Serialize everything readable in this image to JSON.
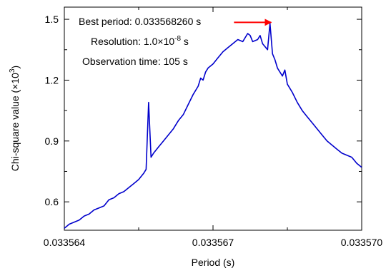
{
  "chart_data": {
    "type": "line",
    "xlabel": "Period (s)",
    "ylabel_text": "Chi-square value (×10",
    "ylabel_exp": "3",
    "ylabel_close": ")",
    "xlim": [
      0.033564,
      0.03357
    ],
    "ylim": [
      0.46,
      1.56
    ],
    "x_ticks": [
      0.033564,
      0.033567,
      0.03357
    ],
    "x_tick_labels": [
      "0.033564",
      "0.033567",
      "0.033570"
    ],
    "y_ticks": [
      0.6,
      0.9,
      1.2,
      1.5
    ],
    "y_tick_labels": [
      "0.6",
      "0.9",
      "1.2",
      "1.5"
    ],
    "line_color": "#0000cc",
    "annotation_color": "#ff0000",
    "annotations": {
      "best_period": "Best period: 0.033568260 s",
      "resolution_prefix": "Resolution: 1.0×10",
      "resolution_exp": "-8",
      "resolution_suffix": " s",
      "observation": "Observation time: 105 s"
    },
    "arrow_target": {
      "x": 0.03356826,
      "y": 1.485
    },
    "series": [
      {
        "x": [
          0.033564,
          0.0335641,
          0.0335642,
          0.0335643,
          0.0335644,
          0.0335645,
          0.0335646,
          0.0335647,
          0.0335648,
          0.0335649,
          0.033565,
          0.0335651,
          0.0335652,
          0.0335653,
          0.0335654,
          0.0335655,
          0.0335656,
          0.03356565,
          0.0335657,
          0.03356575,
          0.0335658,
          0.0335659,
          0.033566,
          0.0335661,
          0.0335662,
          0.0335663,
          0.0335664,
          0.0335665,
          0.0335666,
          0.0335667,
          0.03356675,
          0.0335668,
          0.03356685,
          0.0335669,
          0.033567,
          0.0335671,
          0.0335672,
          0.0335673,
          0.0335674,
          0.0335675,
          0.0335676,
          0.0335677,
          0.03356775,
          0.0335678,
          0.0335679,
          0.03356795,
          0.033568,
          0.0335681,
          0.03356815,
          0.0335682,
          0.03356825,
          0.0335683,
          0.0335684,
          0.03356845,
          0.0335685,
          0.0335686,
          0.0335687,
          0.0335688,
          0.0335689,
          0.033569,
          0.0335691,
          0.0335692,
          0.0335693,
          0.0335694,
          0.0335695,
          0.0335696,
          0.0335697,
          0.0335698,
          0.0335699,
          0.03357
        ],
        "y": [
          0.47,
          0.49,
          0.5,
          0.51,
          0.53,
          0.54,
          0.56,
          0.57,
          0.58,
          0.61,
          0.62,
          0.64,
          0.65,
          0.67,
          0.69,
          0.71,
          0.74,
          0.76,
          1.09,
          0.82,
          0.84,
          0.87,
          0.9,
          0.93,
          0.96,
          1.0,
          1.03,
          1.08,
          1.13,
          1.17,
          1.21,
          1.2,
          1.24,
          1.26,
          1.28,
          1.31,
          1.34,
          1.36,
          1.38,
          1.4,
          1.39,
          1.43,
          1.42,
          1.39,
          1.4,
          1.42,
          1.38,
          1.35,
          1.48,
          1.33,
          1.3,
          1.26,
          1.22,
          1.25,
          1.18,
          1.14,
          1.09,
          1.05,
          1.02,
          0.99,
          0.96,
          0.93,
          0.9,
          0.88,
          0.86,
          0.84,
          0.83,
          0.82,
          0.79,
          0.77
        ]
      }
    ]
  }
}
